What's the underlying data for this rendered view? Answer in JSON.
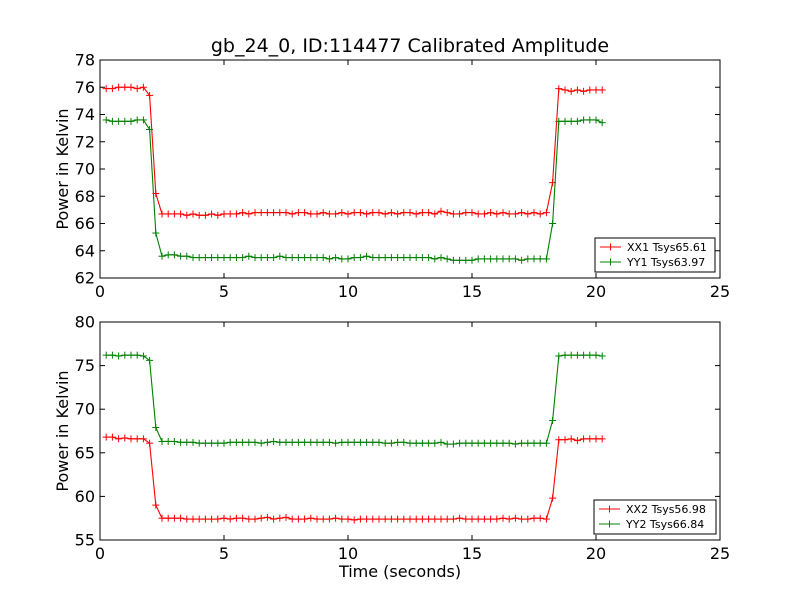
{
  "figure": {
    "title": "gb_24_0, ID:114477 Calibrated Amplitude",
    "xlabel": "Time (seconds)",
    "ylabel": "Power in Kelvin"
  },
  "chart_data": [
    {
      "type": "line",
      "title": "gb_24_0, ID:114477 Calibrated Amplitude",
      "xlabel": "",
      "ylabel": "Power in Kelvin",
      "xlim": [
        0,
        25
      ],
      "ylim": [
        62,
        78
      ],
      "xticks": [
        0,
        5,
        10,
        15,
        20,
        25
      ],
      "yticks": [
        62,
        64,
        66,
        68,
        70,
        72,
        74,
        76,
        78
      ],
      "grid": false,
      "legend_position": "lower-right",
      "series": [
        {
          "name": "XX1 Tsys65.61",
          "color": "#ff0000",
          "marker": "plus",
          "x": [
            0.25,
            0.5,
            0.75,
            1.0,
            1.25,
            1.5,
            1.75,
            2.0,
            2.25,
            2.5,
            2.75,
            3.0,
            3.25,
            3.5,
            3.75,
            4.0,
            4.25,
            4.5,
            4.75,
            5.0,
            5.25,
            5.5,
            5.75,
            6.0,
            6.25,
            6.5,
            6.75,
            7.0,
            7.25,
            7.5,
            7.75,
            8.0,
            8.25,
            8.5,
            8.75,
            9.0,
            9.25,
            9.5,
            9.75,
            10.0,
            10.25,
            10.5,
            10.75,
            11.0,
            11.25,
            11.5,
            11.75,
            12.0,
            12.25,
            12.5,
            12.75,
            13.0,
            13.25,
            13.5,
            13.75,
            14.0,
            14.25,
            14.5,
            14.75,
            15.0,
            15.25,
            15.5,
            15.75,
            16.0,
            16.25,
            16.5,
            16.75,
            17.0,
            17.25,
            17.5,
            17.75,
            18.0,
            18.25,
            18.5,
            18.75,
            19.0,
            19.25,
            19.5,
            19.75,
            20.0,
            20.25
          ],
          "y": [
            75.9,
            75.9,
            76.0,
            76.0,
            76.0,
            75.9,
            76.0,
            75.4,
            68.2,
            66.7,
            66.7,
            66.7,
            66.7,
            66.6,
            66.7,
            66.6,
            66.6,
            66.7,
            66.6,
            66.7,
            66.7,
            66.7,
            66.8,
            66.7,
            66.8,
            66.8,
            66.8,
            66.8,
            66.8,
            66.8,
            66.7,
            66.8,
            66.8,
            66.7,
            66.7,
            66.8,
            66.7,
            66.7,
            66.8,
            66.7,
            66.8,
            66.8,
            66.7,
            66.8,
            66.8,
            66.7,
            66.8,
            66.7,
            66.8,
            66.8,
            66.7,
            66.8,
            66.8,
            66.7,
            66.9,
            66.8,
            66.7,
            66.7,
            66.8,
            66.8,
            66.7,
            66.7,
            66.8,
            66.7,
            66.8,
            66.7,
            66.7,
            66.8,
            66.7,
            66.8,
            66.7,
            66.8,
            69.0,
            75.9,
            75.8,
            75.7,
            75.8,
            75.7,
            75.8,
            75.8,
            75.8
          ]
        },
        {
          "name": "YY1 Tsys63.97",
          "color": "#008000",
          "marker": "plus",
          "x": [
            0.25,
            0.5,
            0.75,
            1.0,
            1.25,
            1.5,
            1.75,
            2.0,
            2.25,
            2.5,
            2.75,
            3.0,
            3.25,
            3.5,
            3.75,
            4.0,
            4.25,
            4.5,
            4.75,
            5.0,
            5.25,
            5.5,
            5.75,
            6.0,
            6.25,
            6.5,
            6.75,
            7.0,
            7.25,
            7.5,
            7.75,
            8.0,
            8.25,
            8.5,
            8.75,
            9.0,
            9.25,
            9.5,
            9.75,
            10.0,
            10.25,
            10.5,
            10.75,
            11.0,
            11.25,
            11.5,
            11.75,
            12.0,
            12.25,
            12.5,
            12.75,
            13.0,
            13.25,
            13.5,
            13.75,
            14.0,
            14.25,
            14.5,
            14.75,
            15.0,
            15.25,
            15.5,
            15.75,
            16.0,
            16.25,
            16.5,
            16.75,
            17.0,
            17.25,
            17.5,
            17.75,
            18.0,
            18.25,
            18.5,
            18.75,
            19.0,
            19.25,
            19.5,
            19.75,
            20.0,
            20.25
          ],
          "y": [
            73.6,
            73.5,
            73.5,
            73.5,
            73.5,
            73.6,
            73.6,
            72.9,
            65.3,
            63.6,
            63.7,
            63.7,
            63.6,
            63.6,
            63.5,
            63.5,
            63.5,
            63.5,
            63.5,
            63.5,
            63.5,
            63.5,
            63.5,
            63.6,
            63.5,
            63.5,
            63.5,
            63.5,
            63.6,
            63.5,
            63.5,
            63.5,
            63.5,
            63.5,
            63.5,
            63.5,
            63.4,
            63.5,
            63.4,
            63.4,
            63.5,
            63.5,
            63.6,
            63.5,
            63.5,
            63.5,
            63.5,
            63.5,
            63.5,
            63.5,
            63.5,
            63.5,
            63.5,
            63.4,
            63.5,
            63.4,
            63.3,
            63.3,
            63.3,
            63.3,
            63.4,
            63.4,
            63.4,
            63.4,
            63.4,
            63.4,
            63.4,
            63.3,
            63.4,
            63.4,
            63.4,
            63.4,
            66.0,
            73.5,
            73.5,
            73.5,
            73.5,
            73.6,
            73.6,
            73.6,
            73.4
          ]
        }
      ]
    },
    {
      "type": "line",
      "title": "",
      "xlabel": "Time (seconds)",
      "ylabel": "Power in Kelvin",
      "xlim": [
        0,
        25
      ],
      "ylim": [
        55,
        80
      ],
      "xticks": [
        0,
        5,
        10,
        15,
        20,
        25
      ],
      "yticks": [
        55,
        60,
        65,
        70,
        75,
        80
      ],
      "grid": false,
      "legend_position": "lower-right",
      "series": [
        {
          "name": "XX2 Tsys56.98",
          "color": "#ff0000",
          "marker": "plus",
          "x": [
            0.25,
            0.5,
            0.75,
            1.0,
            1.25,
            1.5,
            1.75,
            2.0,
            2.25,
            2.5,
            2.75,
            3.0,
            3.25,
            3.5,
            3.75,
            4.0,
            4.25,
            4.5,
            4.75,
            5.0,
            5.25,
            5.5,
            5.75,
            6.0,
            6.25,
            6.5,
            6.75,
            7.0,
            7.25,
            7.5,
            7.75,
            8.0,
            8.25,
            8.5,
            8.75,
            9.0,
            9.25,
            9.5,
            9.75,
            10.0,
            10.25,
            10.5,
            10.75,
            11.0,
            11.25,
            11.5,
            11.75,
            12.0,
            12.25,
            12.5,
            12.75,
            13.0,
            13.25,
            13.5,
            13.75,
            14.0,
            14.25,
            14.5,
            14.75,
            15.0,
            15.25,
            15.5,
            15.75,
            16.0,
            16.25,
            16.5,
            16.75,
            17.0,
            17.25,
            17.5,
            17.75,
            18.0,
            18.25,
            18.5,
            18.75,
            19.0,
            19.25,
            19.5,
            19.75,
            20.0,
            20.25
          ],
          "y": [
            66.8,
            66.8,
            66.6,
            66.7,
            66.6,
            66.6,
            66.6,
            66.1,
            59.0,
            57.5,
            57.5,
            57.5,
            57.5,
            57.4,
            57.4,
            57.4,
            57.4,
            57.4,
            57.4,
            57.5,
            57.4,
            57.5,
            57.5,
            57.4,
            57.4,
            57.5,
            57.6,
            57.4,
            57.5,
            57.6,
            57.4,
            57.4,
            57.4,
            57.5,
            57.4,
            57.4,
            57.4,
            57.5,
            57.4,
            57.4,
            57.3,
            57.4,
            57.4,
            57.4,
            57.4,
            57.4,
            57.4,
            57.4,
            57.4,
            57.4,
            57.4,
            57.4,
            57.4,
            57.4,
            57.4,
            57.4,
            57.4,
            57.5,
            57.4,
            57.4,
            57.4,
            57.4,
            57.4,
            57.4,
            57.5,
            57.4,
            57.5,
            57.4,
            57.4,
            57.5,
            57.5,
            57.4,
            59.8,
            66.5,
            66.5,
            66.6,
            66.4,
            66.6,
            66.6,
            66.6,
            66.6
          ]
        },
        {
          "name": "YY2 Tsys66.84",
          "color": "#008000",
          "marker": "plus",
          "x": [
            0.25,
            0.5,
            0.75,
            1.0,
            1.25,
            1.5,
            1.75,
            2.0,
            2.25,
            2.5,
            2.75,
            3.0,
            3.25,
            3.5,
            3.75,
            4.0,
            4.25,
            4.5,
            4.75,
            5.0,
            5.25,
            5.5,
            5.75,
            6.0,
            6.25,
            6.5,
            6.75,
            7.0,
            7.25,
            7.5,
            7.75,
            8.0,
            8.25,
            8.5,
            8.75,
            9.0,
            9.25,
            9.5,
            9.75,
            10.0,
            10.25,
            10.5,
            10.75,
            11.0,
            11.25,
            11.5,
            11.75,
            12.0,
            12.25,
            12.5,
            12.75,
            13.0,
            13.25,
            13.5,
            13.75,
            14.0,
            14.25,
            14.5,
            14.75,
            15.0,
            15.25,
            15.5,
            15.75,
            16.0,
            16.25,
            16.5,
            16.75,
            17.0,
            17.25,
            17.5,
            17.75,
            18.0,
            18.25,
            18.5,
            18.75,
            19.0,
            19.25,
            19.5,
            19.75,
            20.0,
            20.25
          ],
          "y": [
            76.2,
            76.2,
            76.1,
            76.2,
            76.2,
            76.2,
            76.1,
            75.6,
            67.9,
            66.3,
            66.3,
            66.3,
            66.2,
            66.2,
            66.2,
            66.1,
            66.1,
            66.1,
            66.1,
            66.1,
            66.2,
            66.2,
            66.2,
            66.2,
            66.2,
            66.1,
            66.2,
            66.3,
            66.2,
            66.2,
            66.2,
            66.2,
            66.2,
            66.2,
            66.2,
            66.2,
            66.2,
            66.1,
            66.2,
            66.2,
            66.2,
            66.2,
            66.2,
            66.2,
            66.2,
            66.1,
            66.1,
            66.2,
            66.2,
            66.1,
            66.1,
            66.1,
            66.1,
            66.1,
            66.2,
            66.0,
            66.0,
            66.1,
            66.1,
            66.1,
            66.1,
            66.1,
            66.1,
            66.1,
            66.1,
            66.1,
            66.0,
            66.1,
            66.1,
            66.1,
            66.1,
            66.1,
            68.7,
            76.1,
            76.2,
            76.2,
            76.2,
            76.2,
            76.2,
            76.2,
            76.1
          ]
        }
      ]
    }
  ]
}
